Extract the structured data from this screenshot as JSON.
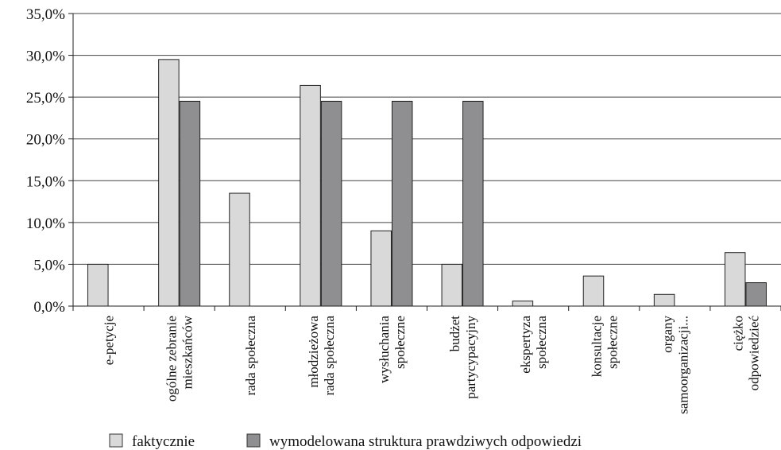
{
  "chart_data": {
    "type": "bar",
    "categories": [
      [
        "e-petycje"
      ],
      [
        "ogólne zebranie",
        "mieszkańców"
      ],
      [
        "rada społeczna"
      ],
      [
        "młodzieżowa",
        "rada społeczna"
      ],
      [
        "wysłuchania",
        "społeczne"
      ],
      [
        "budżet",
        "partycypacyjny"
      ],
      [
        "ekspertyza",
        "społeczna"
      ],
      [
        "konsultacje",
        "społeczne"
      ],
      [
        "organy",
        "samoorganizacji..."
      ],
      [
        "ciężko",
        "odpowiedzieć"
      ]
    ],
    "series": [
      {
        "name": "faktycznie",
        "color": "#d9d9d9",
        "values": [
          5.0,
          29.5,
          13.5,
          26.4,
          9.0,
          5.0,
          0.6,
          3.6,
          1.4,
          6.4
        ]
      },
      {
        "name": "wymodelowana struktura prawdziwych odpowiedzi",
        "color": "#8f8f91",
        "values": [
          0,
          24.5,
          0,
          24.5,
          24.5,
          24.5,
          0,
          0,
          0,
          2.8
        ]
      }
    ],
    "yticks": [
      "0,0%",
      "5,0%",
      "10,0%",
      "15,0%",
      "20,0%",
      "25,0%",
      "30,0%",
      "35,0%"
    ],
    "ylim": [
      0,
      35
    ],
    "grid": true,
    "legend_position": "bottom"
  }
}
